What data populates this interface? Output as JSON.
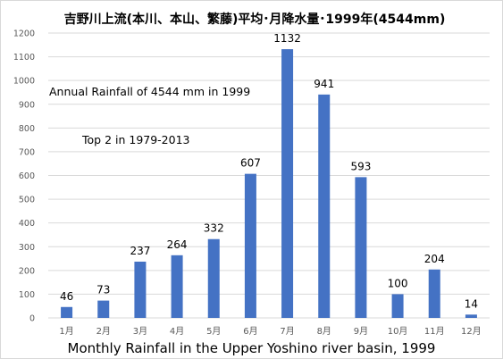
{
  "chart_data": {
    "type": "bar",
    "title": "吉野川上流(本川、本山、繁藤)平均･月降水量･1999年(4544mm)",
    "caption": "Monthly Rainfall in the Upper Yoshino river basin, 1999",
    "annotations": [
      "Annual Rainfall of 4544 mm in 1999",
      "Top 2 in 1979-2013"
    ],
    "categories": [
      "1月",
      "2月",
      "3月",
      "4月",
      "5月",
      "6月",
      "7月",
      "8月",
      "9月",
      "10月",
      "11月",
      "12月"
    ],
    "values": [
      46,
      73,
      237,
      264,
      332,
      607,
      1132,
      941,
      593,
      100,
      204,
      14
    ],
    "ylim": [
      0,
      1200
    ],
    "yticks": [
      0,
      100,
      200,
      300,
      400,
      500,
      600,
      700,
      800,
      900,
      1000,
      1100,
      1200
    ],
    "grid": true,
    "bar_color": "#4472c4",
    "grid_color": "#d9d9d9"
  }
}
